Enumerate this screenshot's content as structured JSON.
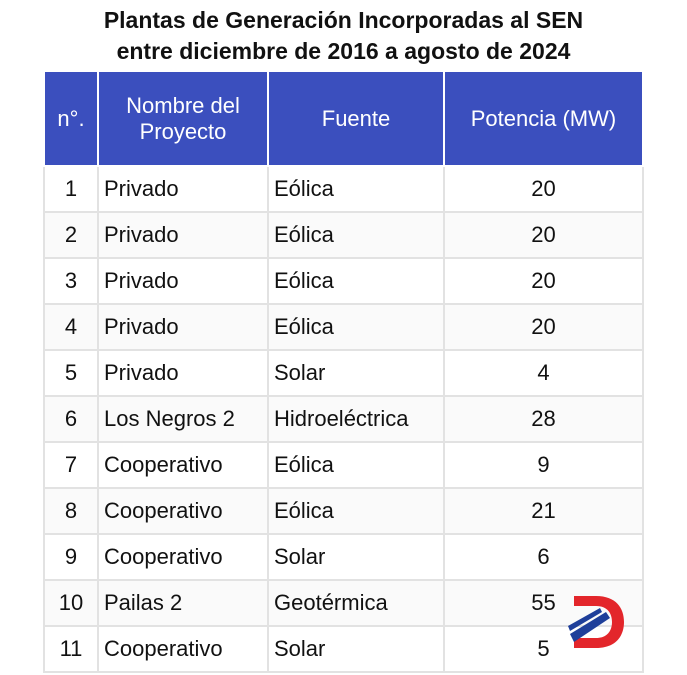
{
  "title": {
    "line1": "Plantas de Generación Incorporadas al SEN",
    "line2": "entre diciembre de 2016 a agosto de 2024"
  },
  "table": {
    "headers": [
      "n°.",
      "Nombre del Proyecto",
      "Fuente",
      "Potencia (MW)"
    ],
    "rows": [
      [
        1,
        "Privado",
        "Eólica",
        20
      ],
      [
        2,
        "Privado",
        "Eólica",
        20
      ],
      [
        3,
        "Privado",
        "Eólica",
        20
      ],
      [
        4,
        "Privado",
        "Eólica",
        20
      ],
      [
        5,
        "Privado",
        "Solar",
        4
      ],
      [
        6,
        "Los Negros 2",
        "Hidroeléctrica",
        28
      ],
      [
        7,
        "Cooperativo",
        "Eólica",
        9
      ],
      [
        8,
        "Cooperativo",
        "Eólica",
        21
      ],
      [
        9,
        "Cooperativo",
        "Solar",
        6
      ],
      [
        10,
        "Pailas 2",
        "Geotérmica",
        55
      ],
      [
        11,
        "Cooperativo",
        "Solar",
        5
      ]
    ]
  }
}
